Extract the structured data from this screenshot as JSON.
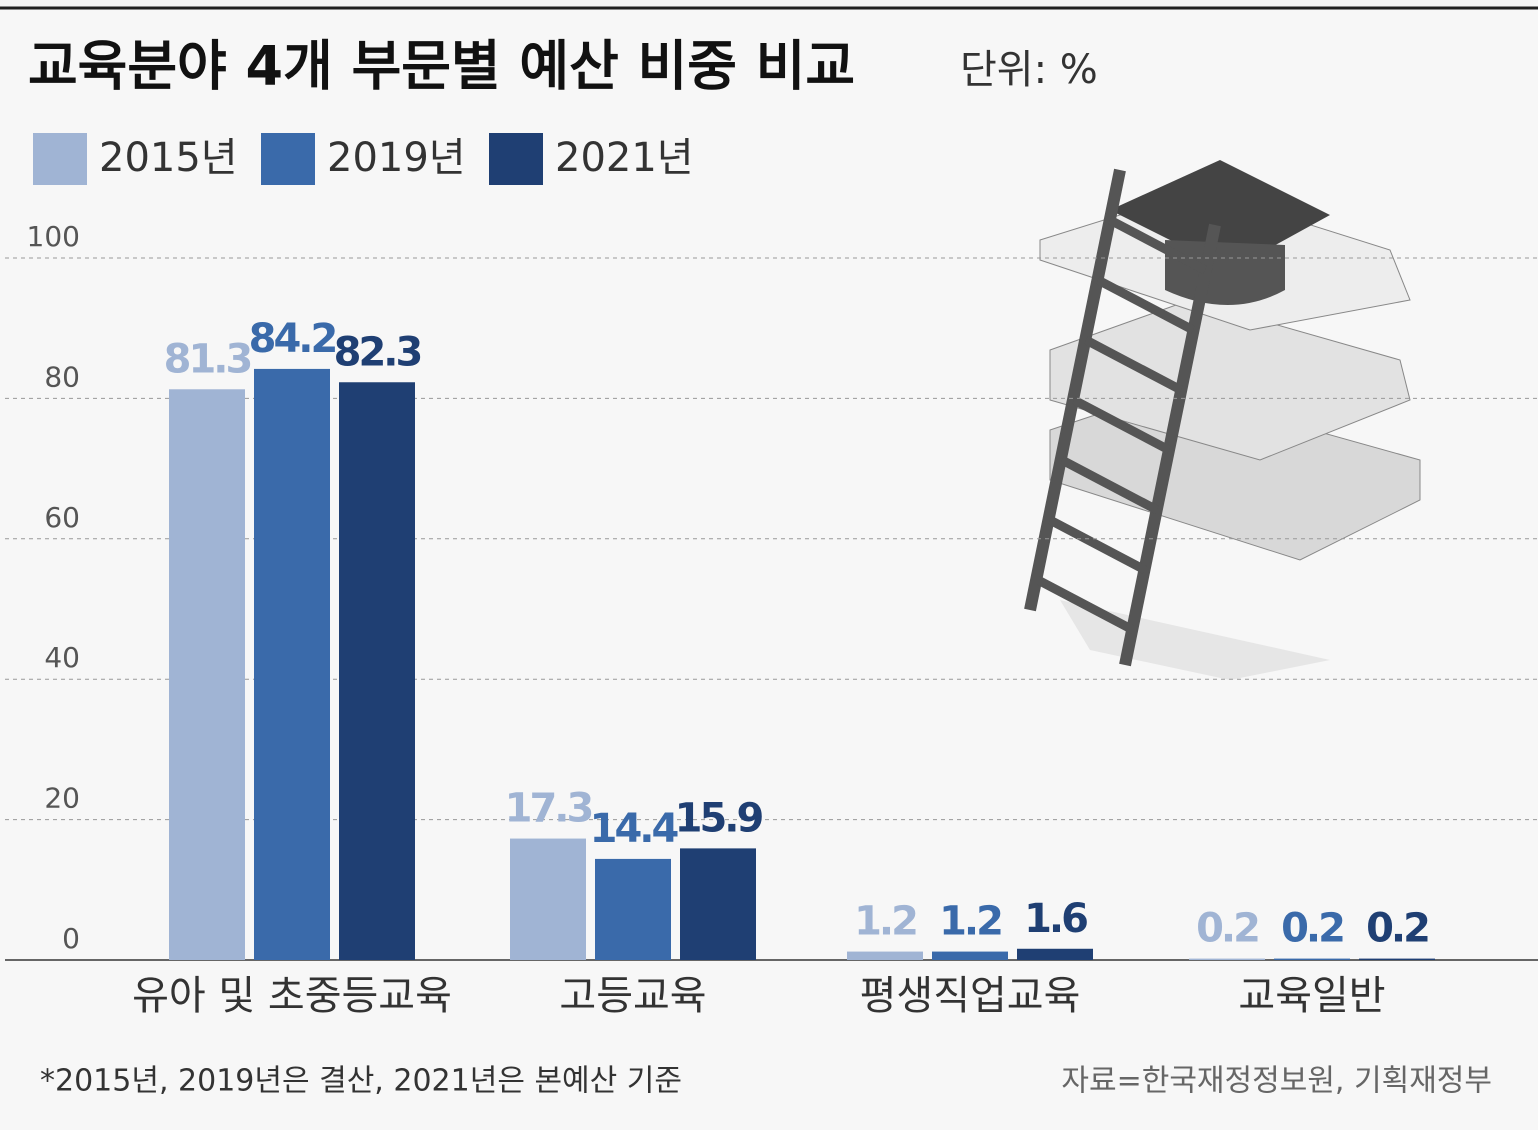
{
  "chart_data": {
    "type": "bar",
    "title": "교육분야 4개 부문별 예산 비중 비교",
    "subtitle": "단위: %",
    "categories": [
      "유아 및 초중등교육",
      "고등교육",
      "평생직업교육",
      "교육일반"
    ],
    "series": [
      {
        "name": "2015년",
        "color": "#a0b4d4",
        "values": [
          81.3,
          17.3,
          1.2,
          0.2
        ]
      },
      {
        "name": "2019년",
        "color": "#3a6aaa",
        "values": [
          84.2,
          14.4,
          1.2,
          0.2
        ]
      },
      {
        "name": "2021년",
        "color": "#1f3f73",
        "values": [
          82.3,
          15.9,
          1.6,
          0.2
        ]
      }
    ],
    "ylim": [
      0,
      100
    ],
    "yticks": [
      0,
      20,
      40,
      60,
      80,
      100
    ],
    "grid": true,
    "note": "*2015년, 2019년은 결산, 2021년은 본예산 기준",
    "source": "자료=한국재정정보원, 기획재정부"
  }
}
